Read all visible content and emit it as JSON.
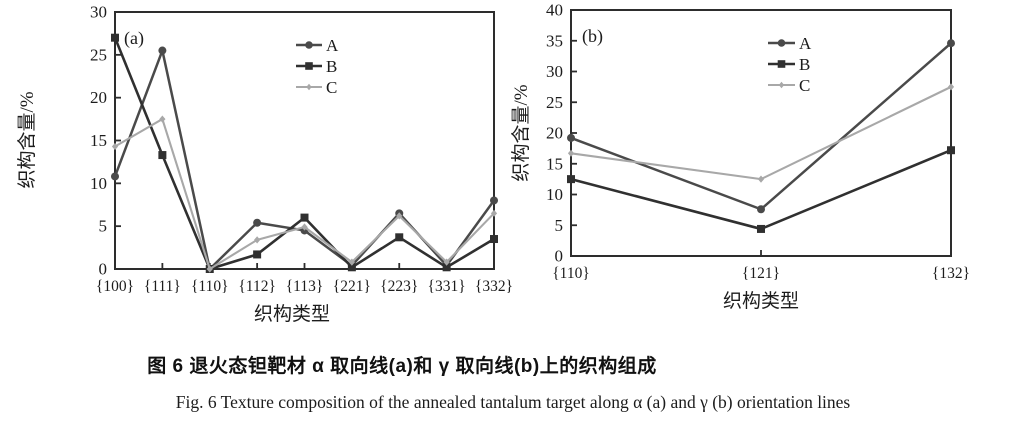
{
  "figure": {
    "caption_zh": "图 6  退火态钽靶材 α 取向线(a)和 γ 取向线(b)上的织构组成",
    "caption_en": "Fig. 6  Texture composition of the annealed tantalum target along α (a) and γ (b) orientation lines"
  },
  "colors": {
    "axis": "#2d2d2d",
    "series_A": "#4a4a4a",
    "series_B": "#303030",
    "series_C": "#a8a8a8"
  },
  "chart_data": [
    {
      "type": "line",
      "panel_label": "(a)",
      "xlabel": "织构类型",
      "ylabel": "织构含量/%",
      "ylim": [
        0,
        30
      ],
      "ytick_step": 5,
      "grid": false,
      "legend_position": "upper-center-inside",
      "legend_entries": [
        "A",
        "B",
        "C"
      ],
      "categories": [
        "{100}",
        "{111}",
        "{110}",
        "{112}",
        "{113}",
        "{221}",
        "{223}",
        "{331}",
        "{332}"
      ],
      "series": [
        {
          "name": "A",
          "marker": "circle",
          "color": "#4a4a4a",
          "values": [
            10.8,
            25.5,
            0,
            5.4,
            4.5,
            0.4,
            6.5,
            0.4,
            8.0
          ]
        },
        {
          "name": "B",
          "marker": "square",
          "color": "#303030",
          "values": [
            27.0,
            13.3,
            0,
            1.7,
            6.0,
            0.2,
            3.7,
            0.2,
            3.5
          ]
        },
        {
          "name": "C",
          "marker": "diamond",
          "color": "#a8a8a8",
          "values": [
            14.3,
            17.5,
            0,
            3.4,
            4.9,
            0.8,
            6.2,
            0.8,
            6.5
          ]
        }
      ]
    },
    {
      "type": "line",
      "panel_label": "(b)",
      "xlabel": "织构类型",
      "ylabel": "织构含量/%",
      "ylim": [
        0,
        40
      ],
      "ytick_step": 5,
      "grid": false,
      "legend_position": "upper-center-inside",
      "legend_entries": [
        "A",
        "B",
        "C"
      ],
      "categories": [
        "{110}",
        "{121}",
        "{132}"
      ],
      "series": [
        {
          "name": "A",
          "marker": "circle",
          "color": "#4a4a4a",
          "values": [
            19.2,
            7.6,
            34.6
          ]
        },
        {
          "name": "B",
          "marker": "square",
          "color": "#303030",
          "values": [
            12.5,
            4.4,
            17.2
          ]
        },
        {
          "name": "C",
          "marker": "diamond",
          "color": "#a8a8a8",
          "values": [
            16.7,
            12.5,
            27.5
          ]
        }
      ]
    }
  ]
}
